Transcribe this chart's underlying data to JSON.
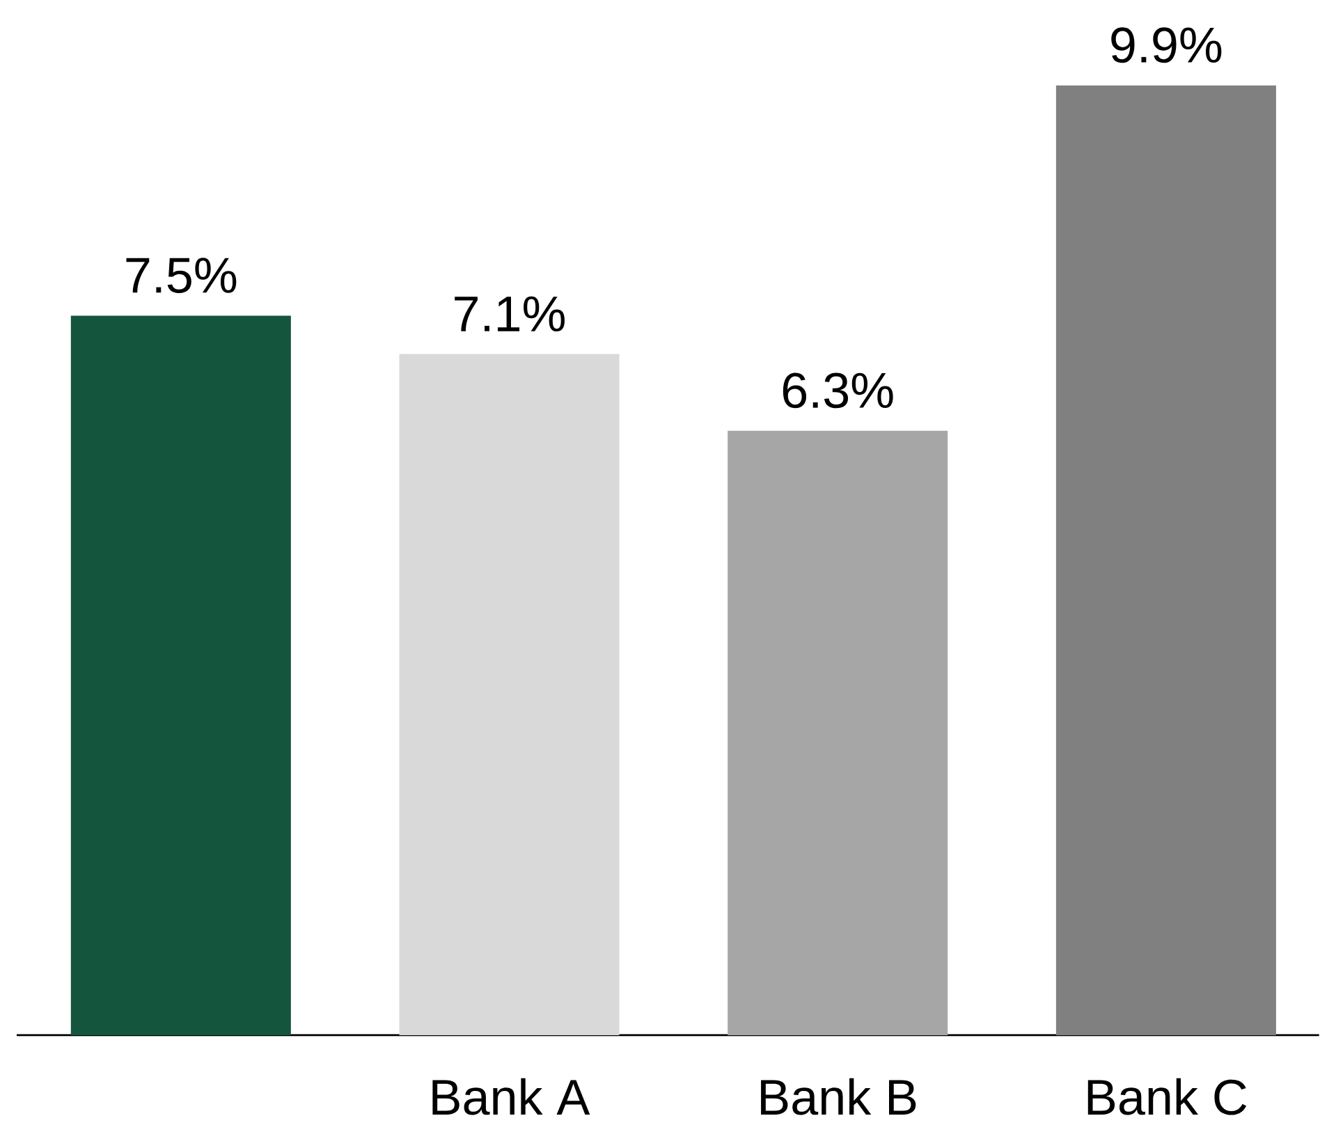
{
  "chart_data": {
    "type": "bar",
    "categories": [
      null,
      "Bank A",
      "Bank B",
      "Bank C"
    ],
    "values": [
      7.5,
      7.1,
      6.3,
      9.9
    ],
    "colors": [
      "#14553d",
      "#d9d9d9",
      "#a6a6a6",
      "#808080"
    ],
    "value_labels": [
      "7.5%",
      "7.1%",
      "6.3%",
      "9.9%"
    ]
  }
}
